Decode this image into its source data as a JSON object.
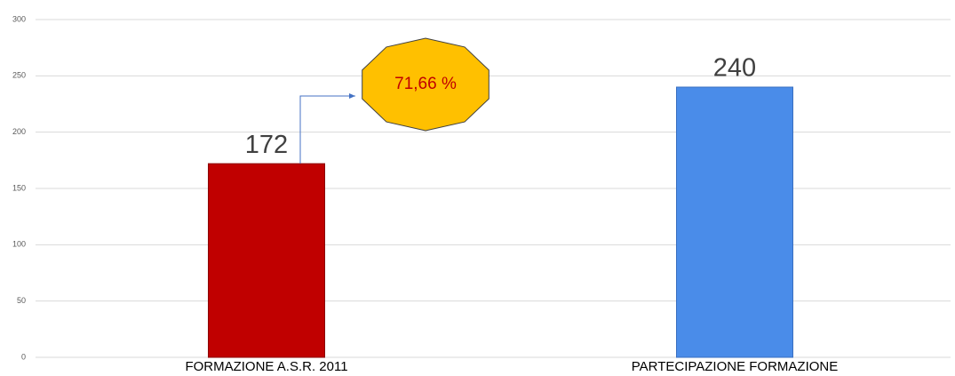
{
  "chart_data": {
    "type": "bar",
    "categories": [
      "FORMAZIONE A.S.R. 2011",
      "PARTECIPAZIONE FORMAZIONE"
    ],
    "values": [
      172,
      240
    ],
    "colors": [
      "#c00000",
      "#4a8ce9"
    ],
    "ylim": [
      0,
      300
    ],
    "yticks": [
      0,
      50,
      100,
      150,
      200,
      250,
      300
    ],
    "grid": true,
    "annotation": "71,66 %"
  }
}
